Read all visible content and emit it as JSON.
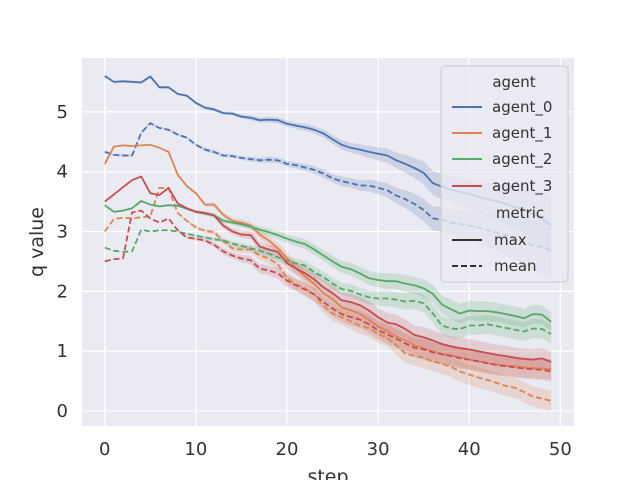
{
  "chart_data": {
    "type": "line",
    "title": "",
    "xlabel": "step",
    "ylabel": "q value",
    "xlim": [
      -2.5,
      51.5
    ],
    "ylim": [
      -0.25,
      5.9
    ],
    "xticks": [
      0,
      10,
      20,
      30,
      40,
      50
    ],
    "yticks": [
      0,
      1,
      2,
      3,
      4,
      5
    ],
    "grid": true,
    "legend_position": "top-right",
    "legend": {
      "hue_title": "agent",
      "style_title": "metric",
      "agents": [
        "agent_0",
        "agent_1",
        "agent_2",
        "agent_3"
      ],
      "metrics": [
        "max",
        "mean"
      ]
    },
    "colors": {
      "agent_0": "#4c72b0",
      "agent_1": "#dd8452",
      "agent_2": "#55a868",
      "agent_3": "#c44e52",
      "background": "#eaeaf2",
      "grid": "#ffffff"
    },
    "x": [
      0,
      1,
      2,
      3,
      4,
      5,
      6,
      7,
      8,
      9,
      10,
      11,
      12,
      13,
      14,
      15,
      16,
      17,
      18,
      19,
      20,
      21,
      22,
      23,
      24,
      25,
      26,
      27,
      28,
      29,
      30,
      31,
      32,
      33,
      34,
      35,
      36,
      37,
      38,
      39,
      40,
      41,
      42,
      43,
      44,
      45,
      46,
      47,
      48,
      49
    ],
    "series": [
      {
        "agent": "agent_0",
        "metric": "max",
        "band": [
          0.02,
          0.02,
          0.02,
          0.02,
          0.02,
          0.02,
          0.02,
          0.02,
          0.02,
          0.02,
          0.02,
          0.03,
          0.03,
          0.03,
          0.03,
          0.03,
          0.04,
          0.04,
          0.05,
          0.05,
          0.05,
          0.05,
          0.06,
          0.06,
          0.07,
          0.07,
          0.08,
          0.08,
          0.09,
          0.1,
          0.11,
          0.12,
          0.13,
          0.15,
          0.17,
          0.19,
          0.2,
          0.21,
          0.22,
          0.23,
          0.24,
          0.26,
          0.28,
          0.3,
          0.33,
          0.36,
          0.39,
          0.42,
          0.45,
          0.48
        ],
        "values": [
          5.6,
          5.5,
          5.51,
          5.5,
          5.49,
          5.59,
          5.41,
          5.41,
          5.3,
          5.27,
          5.15,
          5.07,
          5.04,
          4.98,
          4.97,
          4.92,
          4.9,
          4.86,
          4.87,
          4.86,
          4.8,
          4.77,
          4.74,
          4.7,
          4.64,
          4.54,
          4.45,
          4.4,
          4.37,
          4.33,
          4.3,
          4.27,
          4.19,
          4.13,
          4.06,
          3.98,
          3.81,
          3.75,
          3.7,
          3.66,
          3.63,
          3.58,
          3.54,
          3.51,
          3.46,
          3.41,
          3.36,
          3.29,
          3.21,
          3.1
        ]
      },
      {
        "agent": "agent_0",
        "metric": "mean",
        "band": [
          0.02,
          0.02,
          0.02,
          0.02,
          0.02,
          0.02,
          0.02,
          0.02,
          0.02,
          0.02,
          0.02,
          0.03,
          0.03,
          0.03,
          0.03,
          0.03,
          0.04,
          0.04,
          0.05,
          0.05,
          0.05,
          0.05,
          0.06,
          0.06,
          0.07,
          0.07,
          0.08,
          0.08,
          0.09,
          0.1,
          0.11,
          0.12,
          0.13,
          0.15,
          0.17,
          0.19,
          0.2,
          0.21,
          0.22,
          0.23,
          0.24,
          0.26,
          0.28,
          0.3,
          0.33,
          0.36,
          0.39,
          0.42,
          0.45,
          0.48
        ],
        "values": [
          4.33,
          4.28,
          4.27,
          4.27,
          4.65,
          4.81,
          4.73,
          4.7,
          4.62,
          4.57,
          4.45,
          4.37,
          4.33,
          4.27,
          4.26,
          4.23,
          4.21,
          4.19,
          4.2,
          4.19,
          4.13,
          4.11,
          4.07,
          4.03,
          3.97,
          3.89,
          3.84,
          3.81,
          3.77,
          3.77,
          3.73,
          3.69,
          3.6,
          3.54,
          3.46,
          3.36,
          3.22,
          3.2,
          3.15,
          3.13,
          3.1,
          3.07,
          3.02,
          2.98,
          2.94,
          2.89,
          2.82,
          2.77,
          2.74,
          2.68
        ]
      },
      {
        "agent": "agent_1",
        "metric": "max",
        "band": [
          0,
          0,
          0,
          0,
          0,
          0,
          0,
          0,
          0,
          0.02,
          0.03,
          0.03,
          0.04,
          0.04,
          0.05,
          0.06,
          0.06,
          0.07,
          0.08,
          0.09,
          0.1,
          0.1,
          0.11,
          0.12,
          0.12,
          0.13,
          0.13,
          0.14,
          0.14,
          0.15,
          0.15,
          0.15,
          0.16,
          0.16,
          0.16,
          0.17,
          0.17,
          0.17,
          0.17,
          0.17,
          0.17,
          0.17,
          0.17,
          0.17,
          0.17,
          0.17,
          0.17,
          0.17,
          0.17,
          0.17
        ],
        "values": [
          4.13,
          4.42,
          4.44,
          4.43,
          4.44,
          4.45,
          4.4,
          4.33,
          3.95,
          3.76,
          3.64,
          3.45,
          3.45,
          3.28,
          3.18,
          3.15,
          3.1,
          2.95,
          2.85,
          2.72,
          2.56,
          2.38,
          2.25,
          2.12,
          1.97,
          1.87,
          1.73,
          1.68,
          1.62,
          1.52,
          1.41,
          1.33,
          1.25,
          1.18,
          1.1,
          1.05,
          1.0,
          0.95,
          0.93,
          0.9,
          0.86,
          0.83,
          0.8,
          0.78,
          0.76,
          0.75,
          0.73,
          0.72,
          0.71,
          0.7
        ]
      },
      {
        "agent": "agent_1",
        "metric": "mean",
        "band": [
          0,
          0,
          0,
          0,
          0,
          0,
          0,
          0,
          0,
          0.02,
          0.03,
          0.03,
          0.04,
          0.04,
          0.05,
          0.06,
          0.06,
          0.07,
          0.08,
          0.09,
          0.1,
          0.1,
          0.11,
          0.12,
          0.12,
          0.13,
          0.13,
          0.14,
          0.14,
          0.15,
          0.15,
          0.15,
          0.16,
          0.16,
          0.16,
          0.17,
          0.17,
          0.17,
          0.17,
          0.17,
          0.17,
          0.17,
          0.17,
          0.17,
          0.17,
          0.17,
          0.17,
          0.17,
          0.17,
          0.17
        ],
        "values": [
          3.0,
          3.21,
          3.23,
          3.22,
          3.24,
          3.25,
          3.73,
          3.72,
          3.31,
          3.18,
          3.07,
          3.01,
          2.99,
          2.84,
          2.72,
          2.7,
          2.7,
          2.6,
          2.55,
          2.45,
          2.22,
          2.12,
          2.05,
          1.95,
          1.76,
          1.63,
          1.57,
          1.5,
          1.43,
          1.38,
          1.29,
          1.22,
          1.1,
          0.96,
          0.92,
          0.89,
          0.83,
          0.79,
          0.74,
          0.66,
          0.61,
          0.56,
          0.52,
          0.47,
          0.42,
          0.39,
          0.32,
          0.24,
          0.21,
          0.17
        ]
      },
      {
        "agent": "agent_2",
        "metric": "max",
        "band": [
          0,
          0,
          0,
          0,
          0,
          0,
          0,
          0,
          0,
          0.02,
          0.02,
          0.03,
          0.03,
          0.04,
          0.04,
          0.05,
          0.05,
          0.06,
          0.06,
          0.07,
          0.07,
          0.08,
          0.08,
          0.09,
          0.09,
          0.1,
          0.1,
          0.11,
          0.11,
          0.12,
          0.12,
          0.13,
          0.13,
          0.14,
          0.14,
          0.15,
          0.15,
          0.15,
          0.16,
          0.16,
          0.16,
          0.16,
          0.16,
          0.16,
          0.16,
          0.16,
          0.16,
          0.16,
          0.16,
          0.16
        ],
        "values": [
          3.44,
          3.33,
          3.35,
          3.39,
          3.51,
          3.45,
          3.42,
          3.44,
          3.43,
          3.38,
          3.33,
          3.3,
          3.27,
          3.18,
          3.15,
          3.12,
          3.08,
          3.03,
          2.99,
          2.94,
          2.88,
          2.83,
          2.79,
          2.7,
          2.6,
          2.5,
          2.41,
          2.37,
          2.3,
          2.22,
          2.19,
          2.17,
          2.17,
          2.13,
          2.1,
          2.05,
          1.96,
          1.78,
          1.7,
          1.63,
          1.68,
          1.67,
          1.67,
          1.65,
          1.62,
          1.59,
          1.55,
          1.62,
          1.61,
          1.49
        ]
      },
      {
        "agent": "agent_2",
        "metric": "mean",
        "band": [
          0,
          0,
          0,
          0,
          0,
          0,
          0,
          0,
          0,
          0.02,
          0.02,
          0.03,
          0.03,
          0.04,
          0.04,
          0.05,
          0.05,
          0.06,
          0.06,
          0.07,
          0.07,
          0.08,
          0.08,
          0.09,
          0.09,
          0.1,
          0.1,
          0.11,
          0.11,
          0.12,
          0.12,
          0.13,
          0.13,
          0.14,
          0.14,
          0.15,
          0.15,
          0.15,
          0.16,
          0.16,
          0.16,
          0.16,
          0.16,
          0.16,
          0.16,
          0.16,
          0.16,
          0.16,
          0.16,
          0.16
        ],
        "values": [
          2.73,
          2.68,
          2.66,
          2.67,
          3.03,
          3.0,
          3.02,
          3.02,
          3.0,
          2.96,
          2.93,
          2.9,
          2.87,
          2.85,
          2.8,
          2.76,
          2.72,
          2.68,
          2.63,
          2.57,
          2.51,
          2.47,
          2.43,
          2.32,
          2.24,
          2.13,
          2.04,
          2.01,
          1.95,
          1.9,
          1.88,
          1.88,
          1.86,
          1.83,
          1.84,
          1.8,
          1.63,
          1.43,
          1.38,
          1.37,
          1.43,
          1.43,
          1.45,
          1.42,
          1.39,
          1.36,
          1.33,
          1.38,
          1.37,
          1.29
        ]
      },
      {
        "agent": "agent_3",
        "metric": "max",
        "band": [
          0,
          0,
          0,
          0,
          0,
          0,
          0,
          0,
          0,
          0.02,
          0.03,
          0.03,
          0.04,
          0.05,
          0.05,
          0.06,
          0.07,
          0.08,
          0.08,
          0.09,
          0.1,
          0.1,
          0.11,
          0.12,
          0.12,
          0.13,
          0.13,
          0.14,
          0.14,
          0.15,
          0.15,
          0.16,
          0.16,
          0.16,
          0.16,
          0.17,
          0.17,
          0.17,
          0.17,
          0.17,
          0.17,
          0.17,
          0.17,
          0.17,
          0.17,
          0.17,
          0.17,
          0.17,
          0.17,
          0.17
        ],
        "values": [
          3.5,
          3.62,
          3.74,
          3.86,
          3.92,
          3.64,
          3.61,
          3.73,
          3.47,
          3.39,
          3.33,
          3.31,
          3.27,
          3.1,
          3.0,
          2.95,
          2.94,
          2.75,
          2.7,
          2.66,
          2.47,
          2.38,
          2.3,
          2.2,
          2.07,
          1.97,
          1.85,
          1.82,
          1.77,
          1.68,
          1.57,
          1.48,
          1.45,
          1.37,
          1.27,
          1.23,
          1.18,
          1.12,
          1.08,
          1.05,
          1.03,
          1.0,
          0.97,
          0.94,
          0.92,
          0.89,
          0.87,
          0.86,
          0.88,
          0.82
        ]
      },
      {
        "agent": "agent_3",
        "metric": "mean",
        "band": [
          0,
          0,
          0,
          0,
          0,
          0,
          0,
          0,
          0,
          0.02,
          0.03,
          0.03,
          0.04,
          0.05,
          0.05,
          0.06,
          0.07,
          0.08,
          0.08,
          0.09,
          0.1,
          0.1,
          0.11,
          0.12,
          0.12,
          0.13,
          0.13,
          0.14,
          0.14,
          0.15,
          0.15,
          0.16,
          0.16,
          0.16,
          0.16,
          0.17,
          0.17,
          0.17,
          0.17,
          0.17,
          0.17,
          0.17,
          0.17,
          0.17,
          0.17,
          0.17,
          0.17,
          0.17,
          0.17,
          0.17
        ],
        "values": [
          2.5,
          2.54,
          2.55,
          3.32,
          3.35,
          3.22,
          3.15,
          3.22,
          3.02,
          2.9,
          2.88,
          2.85,
          2.78,
          2.67,
          2.6,
          2.55,
          2.52,
          2.38,
          2.35,
          2.3,
          2.18,
          2.1,
          2.03,
          1.95,
          1.82,
          1.71,
          1.62,
          1.57,
          1.53,
          1.45,
          1.35,
          1.28,
          1.21,
          1.13,
          1.06,
          1.03,
          0.98,
          0.95,
          0.92,
          0.88,
          0.86,
          0.83,
          0.8,
          0.77,
          0.75,
          0.73,
          0.71,
          0.7,
          0.69,
          0.66
        ]
      }
    ]
  }
}
